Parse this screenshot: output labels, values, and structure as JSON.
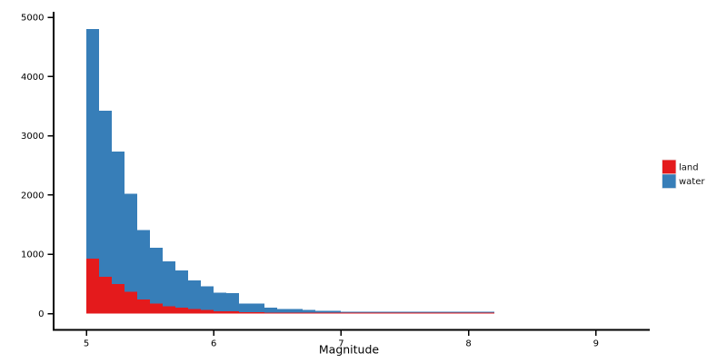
{
  "chart_data": {
    "type": "bar",
    "subtype": "stacked-histogram",
    "title": "",
    "xlabel": "Magnitude",
    "ylabel": "",
    "bin_width": 0.1,
    "xlim": [
      4.74,
      9.42
    ],
    "ylim": [
      0,
      5000
    ],
    "grid": false,
    "x_ticks": [
      5,
      6,
      7,
      8,
      9
    ],
    "y_ticks": [
      0,
      1000,
      2000,
      3000,
      4000,
      5000
    ],
    "categories": [
      5.0,
      5.1,
      5.2,
      5.3,
      5.4,
      5.5,
      5.6,
      5.7,
      5.8,
      5.9,
      6.0,
      6.1,
      6.2,
      6.3,
      6.4,
      6.5,
      6.6,
      6.7,
      6.8,
      6.9,
      7.0,
      7.1,
      7.2,
      7.3,
      7.4,
      7.5,
      7.6,
      7.7,
      7.8,
      7.9,
      8.0,
      8.1
    ],
    "stack_order": [
      "land",
      "water"
    ],
    "series": [
      {
        "name": "land",
        "color": "#e41a1c",
        "values": [
          930,
          620,
          500,
          370,
          240,
          170,
          120,
          100,
          75,
          60,
          40,
          35,
          25,
          20,
          18,
          15,
          12,
          12,
          10,
          10,
          8,
          8,
          6,
          10,
          10,
          4,
          8,
          8,
          3,
          3,
          2,
          2
        ]
      },
      {
        "name": "water",
        "color": "#377eb8",
        "values": [
          3870,
          2800,
          2230,
          1650,
          1170,
          940,
          760,
          630,
          485,
          400,
          310,
          310,
          145,
          145,
          82,
          65,
          63,
          48,
          35,
          30,
          12,
          10,
          10,
          5,
          5,
          10,
          4,
          4,
          8,
          8,
          8,
          8
        ]
      }
    ],
    "legend": {
      "position": "right",
      "entries": [
        {
          "label": "land",
          "color": "#e41a1c"
        },
        {
          "label": "water",
          "color": "#377eb8"
        }
      ]
    },
    "axis_color": "#000000"
  }
}
